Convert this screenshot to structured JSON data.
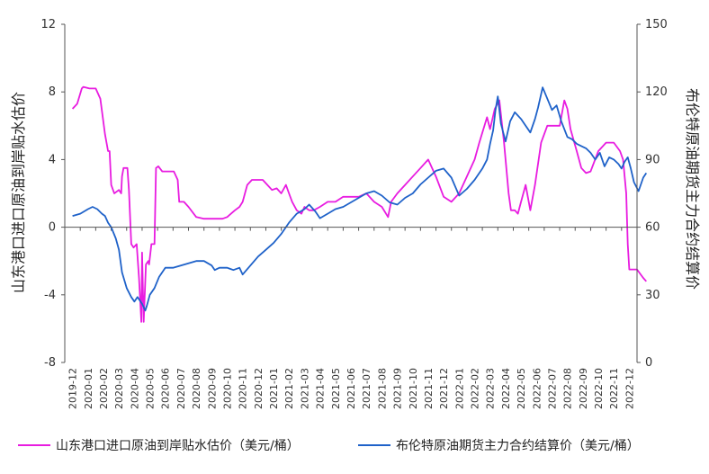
{
  "chart_data": {
    "type": "line",
    "ylabel_left": "山东港口进口原油到岸贴水估价",
    "ylabel_right": "布伦特原油期货主力合约结算价",
    "y_left_range": [
      -8,
      12
    ],
    "y_left_ticks": [
      "-8",
      "-4",
      "0",
      "4",
      "8",
      "12"
    ],
    "y_right_range": [
      0,
      150
    ],
    "y_right_ticks": [
      "0",
      "30",
      "60",
      "90",
      "120",
      "150"
    ],
    "x_ticks": [
      "2019-12",
      "2020-01",
      "2020-02",
      "2020-03",
      "2020-04",
      "2020-05",
      "2020-06",
      "2020-07",
      "2020-08",
      "2020-09",
      "2020-10",
      "2020-11",
      "2020-12",
      "2021-01",
      "2021-02",
      "2021-03",
      "2021-04",
      "2021-05",
      "2021-06",
      "2021-07",
      "2021-08",
      "2021-09",
      "2021-10",
      "2021-11",
      "2021-12",
      "2022-01",
      "2022-02",
      "2022-03",
      "2022-04",
      "2022-05",
      "2022-06",
      "2022-07",
      "2022-08",
      "2022-09",
      "2022-10",
      "2022-11",
      "2022-12"
    ],
    "grid": false,
    "legend_position": "bottom",
    "series": [
      {
        "name": "山东港口进口原油到岸贴水估价（美元/桶）",
        "axis": "left",
        "color": "#e81ce0",
        "x": [
          0,
          0.3,
          0.6,
          0.7,
          1.1,
          1.5,
          1.8,
          2.1,
          2.3,
          2.4,
          2.5,
          2.7,
          3.0,
          3.15,
          3.2,
          3.3,
          3.55,
          3.65,
          3.8,
          3.95,
          4.15,
          4.3,
          4.45,
          4.5,
          4.6,
          4.75,
          4.9,
          4.95,
          5.1,
          5.3,
          5.4,
          5.55,
          5.8,
          6.05,
          6.2,
          6.55,
          6.7,
          6.8,
          6.9,
          7.05,
          7.2,
          7.5,
          8.0,
          8.5,
          9.0,
          9.3,
          9.7,
          10.0,
          10.5,
          10.8,
          11.0,
          11.3,
          11.6,
          11.9,
          12.3,
          12.6,
          12.9,
          13.2,
          13.5,
          13.8,
          14.0,
          14.2,
          14.5,
          14.8,
          15.0,
          15.3,
          15.6,
          16.0,
          16.5,
          17.0,
          17.5,
          18.0,
          18.5,
          19.0,
          19.5,
          20.0,
          20.4,
          20.6,
          21.0,
          21.5,
          22.0,
          22.5,
          23.0,
          23.5,
          24.0,
          24.5,
          25.0,
          25.5,
          26.0,
          26.3,
          26.8,
          27.0,
          27.3,
          27.6,
          27.9,
          28.2,
          28.35,
          28.6,
          28.8,
          29.0,
          29.3,
          29.6,
          29.9,
          30.3,
          30.7,
          31.1,
          31.5,
          31.8,
          32.0,
          32.2,
          32.6,
          32.9,
          33.2,
          33.5,
          34.0,
          34.5,
          35.0,
          35.4,
          35.6,
          35.8,
          35.9,
          36.0,
          36.2,
          36.5,
          36.9,
          37.1
        ],
        "values": [
          7,
          7.3,
          8.2,
          8.3,
          8.2,
          8.2,
          7.6,
          5.5,
          4.5,
          4.5,
          2.5,
          2.0,
          2.2,
          2.0,
          3.0,
          3.5,
          3.5,
          2.2,
          -1.0,
          -1.2,
          -1.0,
          -3.0,
          -5.6,
          -1.5,
          -5.6,
          -2.2,
          -2.0,
          -2.2,
          -1.0,
          -1.0,
          3.5,
          3.6,
          3.3,
          3.3,
          3.3,
          3.3,
          3.0,
          2.8,
          1.5,
          1.5,
          1.5,
          1.2,
          0.6,
          0.5,
          0.5,
          0.5,
          0.5,
          0.6,
          1.0,
          1.2,
          1.5,
          2.5,
          2.8,
          2.8,
          2.8,
          2.5,
          2.2,
          2.3,
          2.0,
          2.5,
          2.0,
          1.5,
          1.0,
          0.8,
          1.2,
          1.0,
          1.0,
          1.2,
          1.5,
          1.5,
          1.8,
          1.8,
          1.8,
          2.0,
          1.5,
          1.2,
          0.6,
          1.5,
          2.0,
          2.5,
          3.0,
          3.5,
          4.0,
          3.0,
          1.8,
          1.5,
          2.0,
          3.0,
          4.0,
          5.0,
          6.5,
          5.8,
          7.0,
          7.5,
          5.0,
          2.0,
          1.0,
          1.0,
          0.8,
          1.5,
          2.5,
          1.0,
          2.5,
          5.0,
          6.0,
          6.0,
          6.0,
          7.5,
          7.0,
          5.8,
          4.5,
          3.5,
          3.2,
          3.3,
          4.5,
          5.0,
          5.0,
          4.5,
          4.0,
          2.0,
          -1.0,
          -2.5,
          -2.5,
          -2.5,
          -3.0,
          -3.2
        ]
      },
      {
        "name": "布伦特原油期货主力合约结算价（美元/桶）",
        "axis": "right",
        "color": "#1f62c9",
        "x": [
          0,
          0.5,
          1.0,
          1.3,
          1.6,
          1.9,
          2.1,
          2.3,
          2.5,
          2.8,
          3.0,
          3.2,
          3.5,
          3.8,
          4.0,
          4.2,
          4.5,
          4.7,
          4.8,
          5.0,
          5.3,
          5.6,
          6.0,
          6.5,
          7.0,
          7.5,
          8.0,
          8.5,
          9.0,
          9.2,
          9.5,
          10.0,
          10.4,
          10.8,
          11.0,
          11.5,
          12.0,
          12.5,
          13.0,
          13.5,
          14.0,
          14.5,
          15.0,
          15.3,
          15.7,
          16.0,
          16.5,
          17.0,
          17.5,
          18.0,
          18.5,
          19.0,
          19.5,
          20.0,
          20.5,
          21.0,
          21.5,
          22.0,
          22.5,
          23.0,
          23.5,
          24.0,
          24.5,
          25.0,
          25.5,
          26.0,
          26.5,
          26.8,
          27.0,
          27.2,
          27.35,
          27.5,
          27.7,
          28.0,
          28.3,
          28.6,
          29.0,
          29.3,
          29.6,
          29.9,
          30.1,
          30.4,
          30.7,
          31.0,
          31.3,
          31.6,
          32.0,
          32.3,
          32.6,
          32.9,
          33.2,
          33.5,
          33.8,
          34.1,
          34.4,
          34.7,
          35.0,
          35.3,
          35.5,
          35.7,
          35.9,
          36.1,
          36.3,
          36.6,
          36.9,
          37.1
        ],
        "values": [
          65,
          66,
          68,
          69,
          68,
          66,
          65,
          62,
          60,
          55,
          50,
          40,
          33,
          29,
          27,
          29,
          26,
          23,
          25,
          30,
          33,
          38,
          42,
          42,
          43,
          44,
          45,
          45,
          43,
          41,
          42,
          42,
          41,
          42,
          39,
          43,
          47,
          50,
          53,
          57,
          62,
          66,
          68,
          70,
          67,
          64,
          66,
          68,
          69,
          71,
          73,
          75,
          76,
          74,
          71,
          70,
          73,
          75,
          79,
          82,
          85,
          86,
          82,
          74,
          77,
          81,
          86,
          90,
          97,
          103,
          112,
          118,
          106,
          98,
          107,
          111,
          108,
          105,
          102,
          108,
          113,
          122,
          117,
          112,
          114,
          107,
          100,
          99,
          97,
          96,
          95,
          93,
          90,
          93,
          87,
          91,
          90,
          88,
          86,
          89,
          91,
          86,
          80,
          76,
          82,
          84
        ]
      }
    ]
  }
}
